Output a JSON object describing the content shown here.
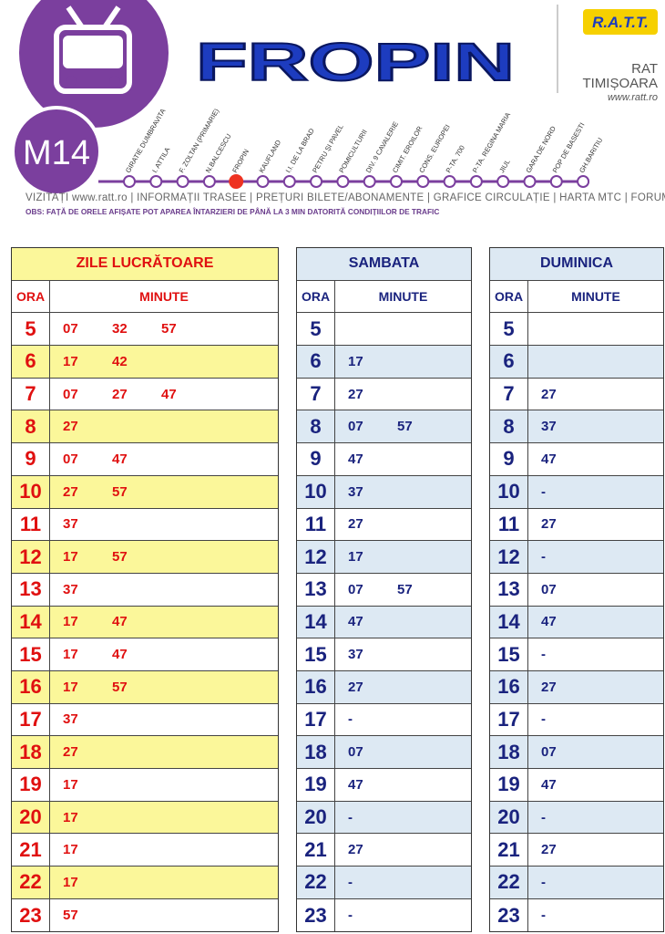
{
  "header": {
    "route": "M14",
    "title": "FROPIN",
    "logo": "R.A.T.T.",
    "company": "RAT",
    "city": "TIMIȘOARA",
    "website": "www.ratt.ro"
  },
  "stops": [
    "GIRATIE DUMBRAVITA",
    "I. ATTILA",
    "F. ZOLTAN (PRIMARIE)",
    "N.BALCESCU",
    "FROPIN",
    "KAUFLAND",
    "I.I. DE LA BRAD",
    "PETRU ȘI PAVEL",
    "POMICULTURII",
    "DIV. 9 CAVALERIE",
    "CIMIT. EROILOR",
    "CONS. EUROPEI",
    "P-TA. 700",
    "P-TA. REGINA MARIA",
    "JIUL",
    "GARA DE NORD",
    "POP DE BASESTI",
    "GH.BARITIU"
  ],
  "current_stop": 4,
  "links": [
    "VIZITAȚI www.ratt.ro",
    "INFORMAȚII TRASEE",
    "PREȚURI BILETE/ABONAMENTE",
    "GRAFICE CIRCULAȚIE",
    "HARTA MTC",
    "FORUM"
  ],
  "notice": "OBS: FAȚĂ DE ORELE AFIȘATE POT APAREA ÎNTARZIERI DE PÂNĂ LA 3 MIN DATORITĂ CONDIȚIILOR DE TRAFIC",
  "tables": [
    {
      "title": "ZILE LUCRĂTOARE",
      "columns": [
        "ORA",
        "MINUTE"
      ],
      "rows": [
        {
          "hour": 5,
          "minutes": [
            "07",
            "32",
            "57"
          ]
        },
        {
          "hour": 6,
          "minutes": [
            "17",
            "42"
          ]
        },
        {
          "hour": 7,
          "minutes": [
            "07",
            "27",
            "47"
          ]
        },
        {
          "hour": 8,
          "minutes": [
            "27"
          ]
        },
        {
          "hour": 9,
          "minutes": [
            "07",
            "47"
          ]
        },
        {
          "hour": 10,
          "minutes": [
            "27",
            "57"
          ]
        },
        {
          "hour": 11,
          "minutes": [
            "37"
          ]
        },
        {
          "hour": 12,
          "minutes": [
            "17",
            "57"
          ]
        },
        {
          "hour": 13,
          "minutes": [
            "37"
          ]
        },
        {
          "hour": 14,
          "minutes": [
            "17",
            "47"
          ]
        },
        {
          "hour": 15,
          "minutes": [
            "17",
            "47"
          ]
        },
        {
          "hour": 16,
          "minutes": [
            "17",
            "57"
          ]
        },
        {
          "hour": 17,
          "minutes": [
            "37"
          ]
        },
        {
          "hour": 18,
          "minutes": [
            "27"
          ]
        },
        {
          "hour": 19,
          "minutes": [
            "17"
          ]
        },
        {
          "hour": 20,
          "minutes": [
            "17"
          ]
        },
        {
          "hour": 21,
          "minutes": [
            "17"
          ]
        },
        {
          "hour": 22,
          "minutes": [
            "17"
          ]
        },
        {
          "hour": 23,
          "minutes": [
            "57"
          ]
        }
      ]
    },
    {
      "title": "SAMBATA",
      "columns": [
        "ORA",
        "MINUTE"
      ],
      "rows": [
        {
          "hour": 5,
          "minutes": []
        },
        {
          "hour": 6,
          "minutes": [
            "17"
          ]
        },
        {
          "hour": 7,
          "minutes": [
            "27"
          ]
        },
        {
          "hour": 8,
          "minutes": [
            "07",
            "57"
          ]
        },
        {
          "hour": 9,
          "minutes": [
            "47"
          ]
        },
        {
          "hour": 10,
          "minutes": [
            "37"
          ]
        },
        {
          "hour": 11,
          "minutes": [
            "27"
          ]
        },
        {
          "hour": 12,
          "minutes": [
            "17"
          ]
        },
        {
          "hour": 13,
          "minutes": [
            "07",
            "57"
          ]
        },
        {
          "hour": 14,
          "minutes": [
            "47"
          ]
        },
        {
          "hour": 15,
          "minutes": [
            "37"
          ]
        },
        {
          "hour": 16,
          "minutes": [
            "27"
          ]
        },
        {
          "hour": 17,
          "minutes": [
            "-"
          ]
        },
        {
          "hour": 18,
          "minutes": [
            "07"
          ]
        },
        {
          "hour": 19,
          "minutes": [
            "47"
          ]
        },
        {
          "hour": 20,
          "minutes": [
            "-"
          ]
        },
        {
          "hour": 21,
          "minutes": [
            "27"
          ]
        },
        {
          "hour": 22,
          "minutes": [
            "-"
          ]
        },
        {
          "hour": 23,
          "minutes": [
            "-"
          ]
        }
      ]
    },
    {
      "title": "DUMINICA",
      "columns": [
        "ORA",
        "MINUTE"
      ],
      "rows": [
        {
          "hour": 5,
          "minutes": []
        },
        {
          "hour": 6,
          "minutes": []
        },
        {
          "hour": 7,
          "minutes": [
            "27"
          ]
        },
        {
          "hour": 8,
          "minutes": [
            "37"
          ]
        },
        {
          "hour": 9,
          "minutes": [
            "47"
          ]
        },
        {
          "hour": 10,
          "minutes": [
            "-"
          ]
        },
        {
          "hour": 11,
          "minutes": [
            "27"
          ]
        },
        {
          "hour": 12,
          "minutes": [
            "-"
          ]
        },
        {
          "hour": 13,
          "minutes": [
            "07"
          ]
        },
        {
          "hour": 14,
          "minutes": [
            "47"
          ]
        },
        {
          "hour": 15,
          "minutes": [
            "-"
          ]
        },
        {
          "hour": 16,
          "minutes": [
            "27"
          ]
        },
        {
          "hour": 17,
          "minutes": [
            "-"
          ]
        },
        {
          "hour": 18,
          "minutes": [
            "07"
          ]
        },
        {
          "hour": 19,
          "minutes": [
            "47"
          ]
        },
        {
          "hour": 20,
          "minutes": [
            "-"
          ]
        },
        {
          "hour": 21,
          "minutes": [
            "27"
          ]
        },
        {
          "hour": 22,
          "minutes": [
            "-"
          ]
        },
        {
          "hour": 23,
          "minutes": [
            "-"
          ]
        }
      ]
    }
  ]
}
